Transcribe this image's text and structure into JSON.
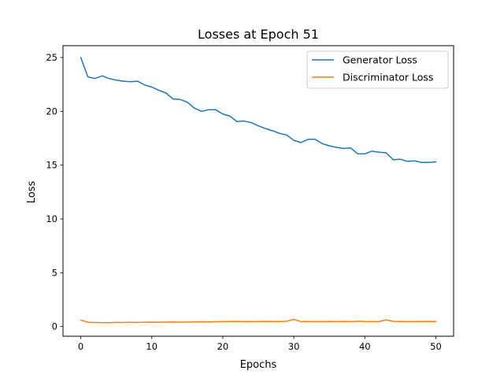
{
  "chart_data": {
    "type": "line",
    "title": "Losses at Epoch 51",
    "xlabel": "Epochs",
    "ylabel": "Loss",
    "xlim": [
      -2.5,
      52.5
    ],
    "ylim": [
      -0.9,
      26.1
    ],
    "xticks": [
      0,
      10,
      20,
      30,
      40,
      50
    ],
    "yticks": [
      0,
      5,
      10,
      15,
      20,
      25
    ],
    "grid": false,
    "legend_position": "top-right",
    "x": [
      0,
      1,
      2,
      3,
      4,
      5,
      6,
      7,
      8,
      9,
      10,
      11,
      12,
      13,
      14,
      15,
      16,
      17,
      18,
      19,
      20,
      21,
      22,
      23,
      24,
      25,
      26,
      27,
      28,
      29,
      30,
      31,
      32,
      33,
      34,
      35,
      36,
      37,
      38,
      39,
      40,
      41,
      42,
      43,
      44,
      45,
      46,
      47,
      48,
      49,
      50
    ],
    "series": [
      {
        "name": "Generator Loss",
        "color": "#1f77b4",
        "values": [
          25.0,
          23.2,
          23.05,
          23.3,
          23.05,
          22.9,
          22.8,
          22.75,
          22.8,
          22.45,
          22.25,
          21.95,
          21.7,
          21.15,
          21.1,
          20.85,
          20.3,
          20.0,
          20.15,
          20.15,
          19.75,
          19.55,
          19.05,
          19.1,
          18.95,
          18.65,
          18.4,
          18.2,
          17.95,
          17.8,
          17.3,
          17.1,
          17.4,
          17.4,
          17.0,
          16.8,
          16.65,
          16.55,
          16.6,
          16.05,
          16.05,
          16.3,
          16.2,
          16.15,
          15.5,
          15.55,
          15.35,
          15.4,
          15.25,
          15.25,
          15.3
        ]
      },
      {
        "name": "Discriminator Loss",
        "color": "#ff7f0e",
        "values": [
          0.6,
          0.4,
          0.38,
          0.37,
          0.36,
          0.39,
          0.38,
          0.4,
          0.39,
          0.4,
          0.42,
          0.41,
          0.42,
          0.43,
          0.42,
          0.42,
          0.44,
          0.45,
          0.44,
          0.45,
          0.46,
          0.47,
          0.48,
          0.46,
          0.47,
          0.46,
          0.48,
          0.47,
          0.47,
          0.49,
          0.68,
          0.46,
          0.47,
          0.46,
          0.46,
          0.47,
          0.46,
          0.47,
          0.46,
          0.5,
          0.47,
          0.46,
          0.47,
          0.62,
          0.48,
          0.47,
          0.46,
          0.46,
          0.47,
          0.47,
          0.47
        ]
      }
    ]
  }
}
